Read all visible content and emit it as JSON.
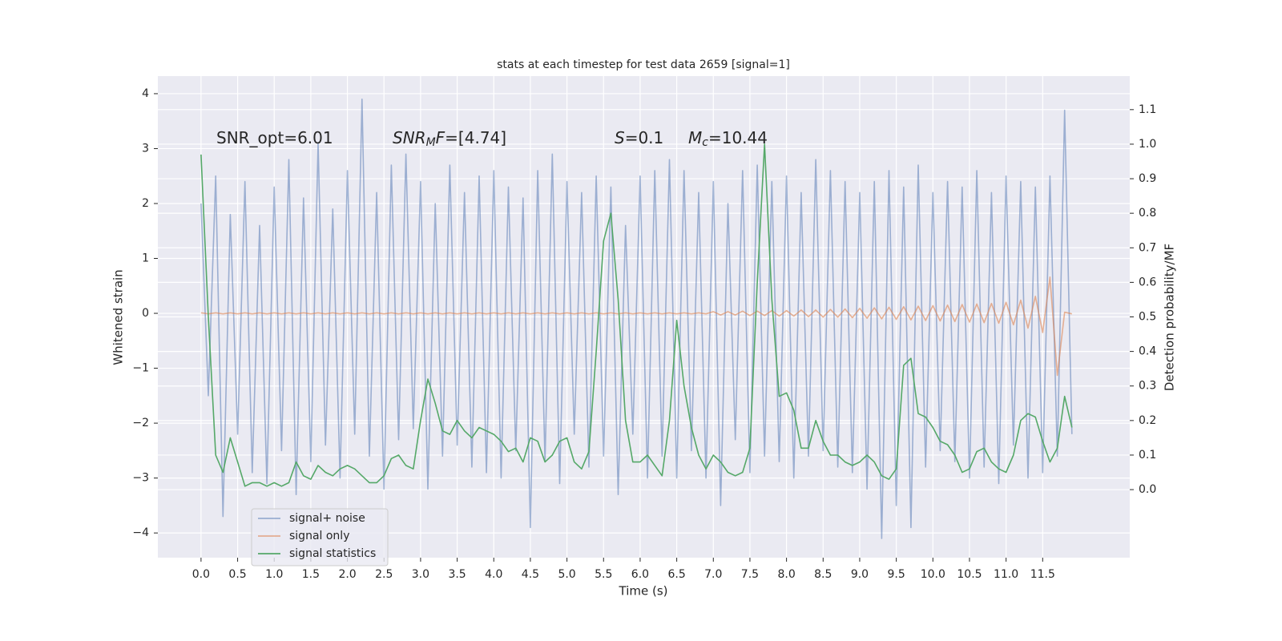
{
  "chart_data": {
    "type": "line",
    "title": "stats at each timestep for test data 2659 [signal=1]",
    "xlabel": "Time (s)",
    "ylabel": "Whitened strain",
    "y2label": "Detection probability/MF",
    "annotations": [
      [
        {
          "text": "SNR_opt=6.01"
        }
      ],
      [
        {
          "text": "SNR",
          "italic": true
        },
        {
          "text": "M",
          "italic": true,
          "sub": true
        },
        {
          "text": "F",
          "italic": true
        },
        {
          "text": "=[4.74]"
        }
      ],
      [
        {
          "text": "S",
          "italic": true
        },
        {
          "text": "=0.1"
        }
      ],
      [
        {
          "text": "M",
          "italic": true
        },
        {
          "text": "c",
          "italic": true,
          "sub": true
        },
        {
          "text": "=10.44"
        }
      ]
    ],
    "grid": true,
    "xlim": [
      -0.59,
      12.69
    ],
    "ylim": [
      -4.45,
      4.32
    ],
    "y2lim": [
      -0.197,
      1.197
    ],
    "xticks": [
      {
        "value": 0,
        "label": "0.0"
      },
      0.5,
      {
        "value": 1,
        "label": "1.0"
      },
      1.5,
      {
        "value": 2,
        "label": "2.0"
      },
      2.5,
      {
        "value": 3,
        "label": "3.0"
      },
      3.5,
      {
        "value": 4,
        "label": "4.0"
      },
      4.5,
      {
        "value": 5,
        "label": "5.0"
      },
      5.5,
      {
        "value": 6,
        "label": "6.0"
      },
      6.5,
      {
        "value": 7,
        "label": "7.0"
      },
      7.5,
      {
        "value": 8,
        "label": "8.0"
      },
      8.5,
      {
        "value": 9,
        "label": "9.0"
      },
      9.5,
      {
        "value": 10,
        "label": "10.0"
      },
      10.5,
      {
        "value": 11,
        "label": "11.0"
      },
      11.5
    ],
    "yticks": [
      {
        "value": -4,
        "label": "−4"
      },
      {
        "value": -3,
        "label": "−3"
      },
      {
        "value": -2,
        "label": "−2"
      },
      {
        "value": -1,
        "label": "−1"
      },
      0,
      1,
      2,
      3,
      4
    ],
    "y2ticks": [
      {
        "value": 0,
        "label": "0.0"
      },
      0.1,
      0.2,
      0.3,
      0.4,
      0.5,
      0.6,
      0.7,
      0.8,
      0.9,
      {
        "value": 1,
        "label": "1.0"
      },
      1.1
    ],
    "x": [
      0.0,
      0.1,
      0.2,
      0.3,
      0.4,
      0.5,
      0.6,
      0.7,
      0.8,
      0.9,
      1.0,
      1.1,
      1.2,
      1.3,
      1.4,
      1.5,
      1.6,
      1.7,
      1.8,
      1.9,
      2.0,
      2.1,
      2.2,
      2.3,
      2.4,
      2.5,
      2.6,
      2.7,
      2.8,
      2.9,
      3.0,
      3.1,
      3.2,
      3.3,
      3.4,
      3.5,
      3.6,
      3.7,
      3.8,
      3.9,
      4.0,
      4.1,
      4.2,
      4.3,
      4.4,
      4.5,
      4.6,
      4.7,
      4.8,
      4.9,
      5.0,
      5.1,
      5.2,
      5.3,
      5.4,
      5.5,
      5.6,
      5.7,
      5.8,
      5.9,
      6.0,
      6.1,
      6.2,
      6.3,
      6.4,
      6.5,
      6.6,
      6.7,
      6.8,
      6.9,
      7.0,
      7.1,
      7.2,
      7.3,
      7.4,
      7.5,
      7.6,
      7.7,
      7.8,
      7.9,
      8.0,
      8.1,
      8.2,
      8.3,
      8.4,
      8.5,
      8.6,
      8.7,
      8.8,
      8.9,
      9.0,
      9.1,
      9.2,
      9.3,
      9.4,
      9.5,
      9.6,
      9.7,
      9.8,
      9.9,
      10.0,
      10.1,
      10.2,
      10.3,
      10.4,
      10.5,
      10.6,
      10.7,
      10.8,
      10.9,
      11.0,
      11.1,
      11.2,
      11.3,
      11.4,
      11.5,
      11.6,
      11.7,
      11.8,
      11.9
    ],
    "series": [
      {
        "name": "signal+ noise",
        "color": "#4c72b0",
        "opacity": 0.5,
        "values": [
          2.0,
          -1.5,
          2.5,
          -3.7,
          1.8,
          -2.2,
          2.4,
          -2.9,
          1.6,
          -3.1,
          2.3,
          -2.5,
          2.8,
          -3.3,
          2.1,
          -2.7,
          3.1,
          -2.4,
          1.9,
          -3.0,
          2.6,
          -2.2,
          3.9,
          -2.6,
          2.2,
          -3.2,
          2.7,
          -2.3,
          2.9,
          -2.1,
          2.4,
          -3.2,
          2.0,
          -2.6,
          2.7,
          -2.4,
          2.2,
          -2.8,
          2.5,
          -2.9,
          2.6,
          -3.0,
          2.3,
          -2.5,
          2.1,
          -3.9,
          2.6,
          -2.7,
          2.9,
          -3.1,
          2.4,
          -2.2,
          2.2,
          -2.8,
          2.5,
          -2.6,
          2.3,
          -3.3,
          1.6,
          -2.2,
          2.5,
          -3.0,
          2.6,
          -2.6,
          2.8,
          -3.0,
          2.6,
          -2.5,
          2.2,
          -3.0,
          2.4,
          -3.5,
          2.0,
          -2.3,
          2.6,
          -2.9,
          2.7,
          -2.6,
          2.4,
          -2.7,
          2.5,
          -3.0,
          2.2,
          -2.6,
          2.8,
          -2.5,
          2.6,
          -2.8,
          2.4,
          -2.9,
          2.2,
          -3.2,
          2.4,
          -4.1,
          2.6,
          -3.5,
          2.3,
          -3.9,
          2.7,
          -2.8,
          2.2,
          -2.5,
          2.4,
          -2.7,
          2.3,
          -3.0,
          2.6,
          -2.8,
          2.2,
          -3.1,
          2.5,
          -2.4,
          2.4,
          -3.0,
          2.3,
          -2.9,
          2.5,
          -2.6,
          3.7,
          -2.2
        ]
      },
      {
        "name": "signal only",
        "color": "#dd8452",
        "opacity": 0.6,
        "values": [
          0.01,
          -0.01,
          0.01,
          -0.01,
          0.01,
          -0.01,
          0.01,
          -0.01,
          0.01,
          -0.01,
          0.01,
          -0.01,
          0.01,
          -0.01,
          0.01,
          -0.01,
          0.01,
          -0.01,
          0.01,
          -0.01,
          0.01,
          -0.01,
          0.01,
          -0.01,
          0.01,
          -0.01,
          0.01,
          -0.01,
          0.01,
          -0.01,
          0.01,
          -0.01,
          0.01,
          -0.01,
          0.01,
          -0.01,
          0.01,
          -0.01,
          0.01,
          -0.01,
          0.01,
          -0.01,
          0.01,
          -0.01,
          0.01,
          -0.01,
          0.01,
          -0.01,
          0.01,
          -0.01,
          0.01,
          -0.01,
          0.01,
          -0.01,
          0.01,
          -0.01,
          0.01,
          -0.01,
          0.01,
          -0.01,
          0.01,
          -0.01,
          0.01,
          -0.01,
          0.01,
          -0.01,
          0.01,
          -0.01,
          0.01,
          -0.01,
          0.03,
          -0.03,
          0.03,
          -0.03,
          0.04,
          -0.04,
          0.04,
          -0.04,
          0.05,
          -0.05,
          0.05,
          -0.05,
          0.06,
          -0.06,
          0.06,
          -0.07,
          0.07,
          -0.07,
          0.08,
          -0.08,
          0.09,
          -0.09,
          0.1,
          -0.1,
          0.11,
          -0.11,
          0.12,
          -0.12,
          0.13,
          -0.13,
          0.14,
          -0.14,
          0.15,
          -0.15,
          0.16,
          -0.16,
          0.17,
          -0.17,
          0.18,
          -0.18,
          0.2,
          -0.21,
          0.24,
          -0.27,
          0.31,
          -0.35,
          0.66,
          -1.13,
          0.02,
          -0.01
        ]
      },
      {
        "name": "signal statistics",
        "color": "#55a868",
        "axis": "y2",
        "values": [
          0.97,
          0.5,
          0.1,
          0.05,
          0.15,
          0.08,
          0.01,
          0.02,
          0.02,
          0.01,
          0.02,
          0.01,
          0.02,
          0.08,
          0.04,
          0.03,
          0.07,
          0.05,
          0.04,
          0.06,
          0.07,
          0.06,
          0.04,
          0.02,
          0.02,
          0.04,
          0.09,
          0.1,
          0.07,
          0.06,
          0.2,
          0.32,
          0.25,
          0.17,
          0.16,
          0.2,
          0.17,
          0.15,
          0.18,
          0.17,
          0.16,
          0.14,
          0.11,
          0.12,
          0.08,
          0.15,
          0.14,
          0.08,
          0.1,
          0.14,
          0.15,
          0.08,
          0.06,
          0.11,
          0.4,
          0.72,
          0.8,
          0.55,
          0.2,
          0.08,
          0.08,
          0.1,
          0.07,
          0.04,
          0.2,
          0.49,
          0.3,
          0.18,
          0.1,
          0.06,
          0.1,
          0.08,
          0.05,
          0.04,
          0.05,
          0.12,
          0.6,
          1.0,
          0.55,
          0.27,
          0.28,
          0.23,
          0.12,
          0.12,
          0.2,
          0.14,
          0.1,
          0.1,
          0.08,
          0.07,
          0.08,
          0.1,
          0.08,
          0.04,
          0.03,
          0.06,
          0.36,
          0.38,
          0.22,
          0.21,
          0.18,
          0.14,
          0.13,
          0.1,
          0.05,
          0.06,
          0.11,
          0.12,
          0.08,
          0.06,
          0.05,
          0.1,
          0.2,
          0.22,
          0.21,
          0.14,
          0.08,
          0.12,
          0.27,
          0.18
        ]
      }
    ]
  }
}
